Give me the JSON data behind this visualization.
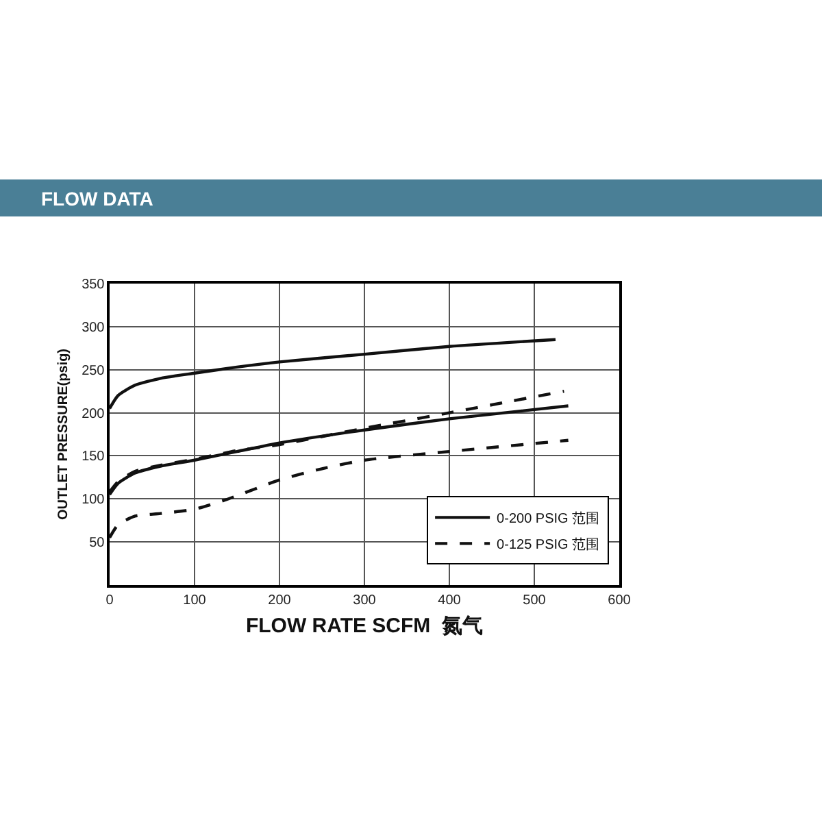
{
  "chart_data": {
    "type": "line",
    "title": "FLOW DATA",
    "xlabel": "FLOW RATE SCFM  氮气",
    "ylabel": "OUTLET PRESSURE(psig)",
    "xlim": [
      0,
      600
    ],
    "xticks": [
      0,
      100,
      200,
      300,
      400,
      500,
      600
    ],
    "ylim": [
      0,
      350
    ],
    "yticks": [
      50,
      100,
      150,
      200,
      250,
      300,
      350
    ],
    "grid": true,
    "legend": "bottom right",
    "marker": "none",
    "series": [
      {
        "name": "0-200 PSIG 范围",
        "color": "#111111",
        "line_style": "solid",
        "x": [
          0,
          10,
          30,
          60,
          100,
          150,
          200,
          300,
          400,
          525
        ],
        "values": [
          205,
          220,
          232,
          240,
          246,
          253,
          259,
          268,
          277,
          285
        ]
      },
      {
        "color": "#111111",
        "line_style": "solid",
        "x": [
          0,
          10,
          30,
          60,
          100,
          150,
          200,
          300,
          400,
          540
        ],
        "values": [
          105,
          118,
          130,
          138,
          145,
          155,
          165,
          180,
          193,
          208
        ]
      },
      {
        "name": "0-125 PSIG 范围",
        "color": "#111111",
        "line_style": "dashed",
        "x": [
          0,
          10,
          30,
          60,
          100,
          150,
          200,
          300,
          400,
          535
        ],
        "values": [
          108,
          120,
          132,
          139,
          146,
          156,
          163,
          182,
          200,
          225
        ]
      },
      {
        "color": "#111111",
        "line_style": "dashed",
        "x": [
          0,
          10,
          30,
          60,
          100,
          140,
          200,
          250,
          300,
          400,
          540
        ],
        "values": [
          55,
          70,
          80,
          83,
          88,
          100,
          122,
          135,
          145,
          155,
          168
        ]
      }
    ]
  }
}
